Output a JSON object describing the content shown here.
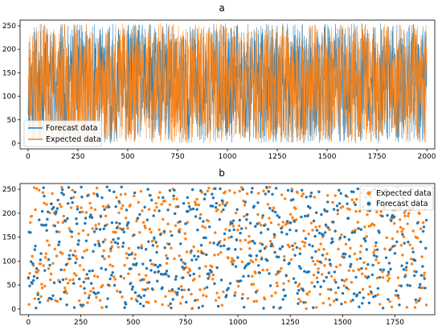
{
  "colors": {
    "forecast": "#1f77b4",
    "expected": "#ff7f0e",
    "axis": "#000000",
    "legend_bg": "#ffffff"
  },
  "chart_data": [
    {
      "id": "a",
      "type": "line",
      "title": "a",
      "xlabel": "",
      "ylabel": "",
      "xlim": [
        -40,
        2040
      ],
      "ylim": [
        -12,
        262
      ],
      "xticks": [
        0,
        250,
        500,
        750,
        1000,
        1250,
        1500,
        1750,
        2000
      ],
      "yticks": [
        0,
        50,
        100,
        150,
        200,
        250
      ],
      "grid": false,
      "legend_position": "lower-left",
      "series": [
        {
          "name": "Forecast data",
          "color": "#1f77b4",
          "n_points": 2000,
          "y_range": [
            0,
            255
          ],
          "seed": 11,
          "x": [
            0,
            2000
          ]
        },
        {
          "name": "Expected data",
          "color": "#ff7f0e",
          "n_points": 2000,
          "y_range": [
            0,
            255
          ],
          "seed": 23,
          "x": [
            0,
            2000
          ]
        }
      ]
    },
    {
      "id": "b",
      "type": "scatter",
      "title": "b",
      "xlabel": "",
      "ylabel": "",
      "xlim": [
        -40,
        1940
      ],
      "ylim": [
        -12,
        262
      ],
      "xticks": [
        0,
        250,
        500,
        750,
        1000,
        1250,
        1500,
        1750
      ],
      "yticks": [
        0,
        50,
        100,
        150,
        200,
        250
      ],
      "grid": false,
      "legend_position": "top-right",
      "series": [
        {
          "name": "Expected data",
          "color": "#ff7f0e",
          "n_points": 1900,
          "y_range": [
            0,
            255
          ],
          "seed": 37,
          "x": [
            0,
            1900
          ]
        },
        {
          "name": "Forecast data",
          "color": "#1f77b4",
          "n_points": 1900,
          "y_range": [
            0,
            255
          ],
          "seed": 53,
          "x": [
            0,
            1900
          ]
        }
      ]
    }
  ]
}
